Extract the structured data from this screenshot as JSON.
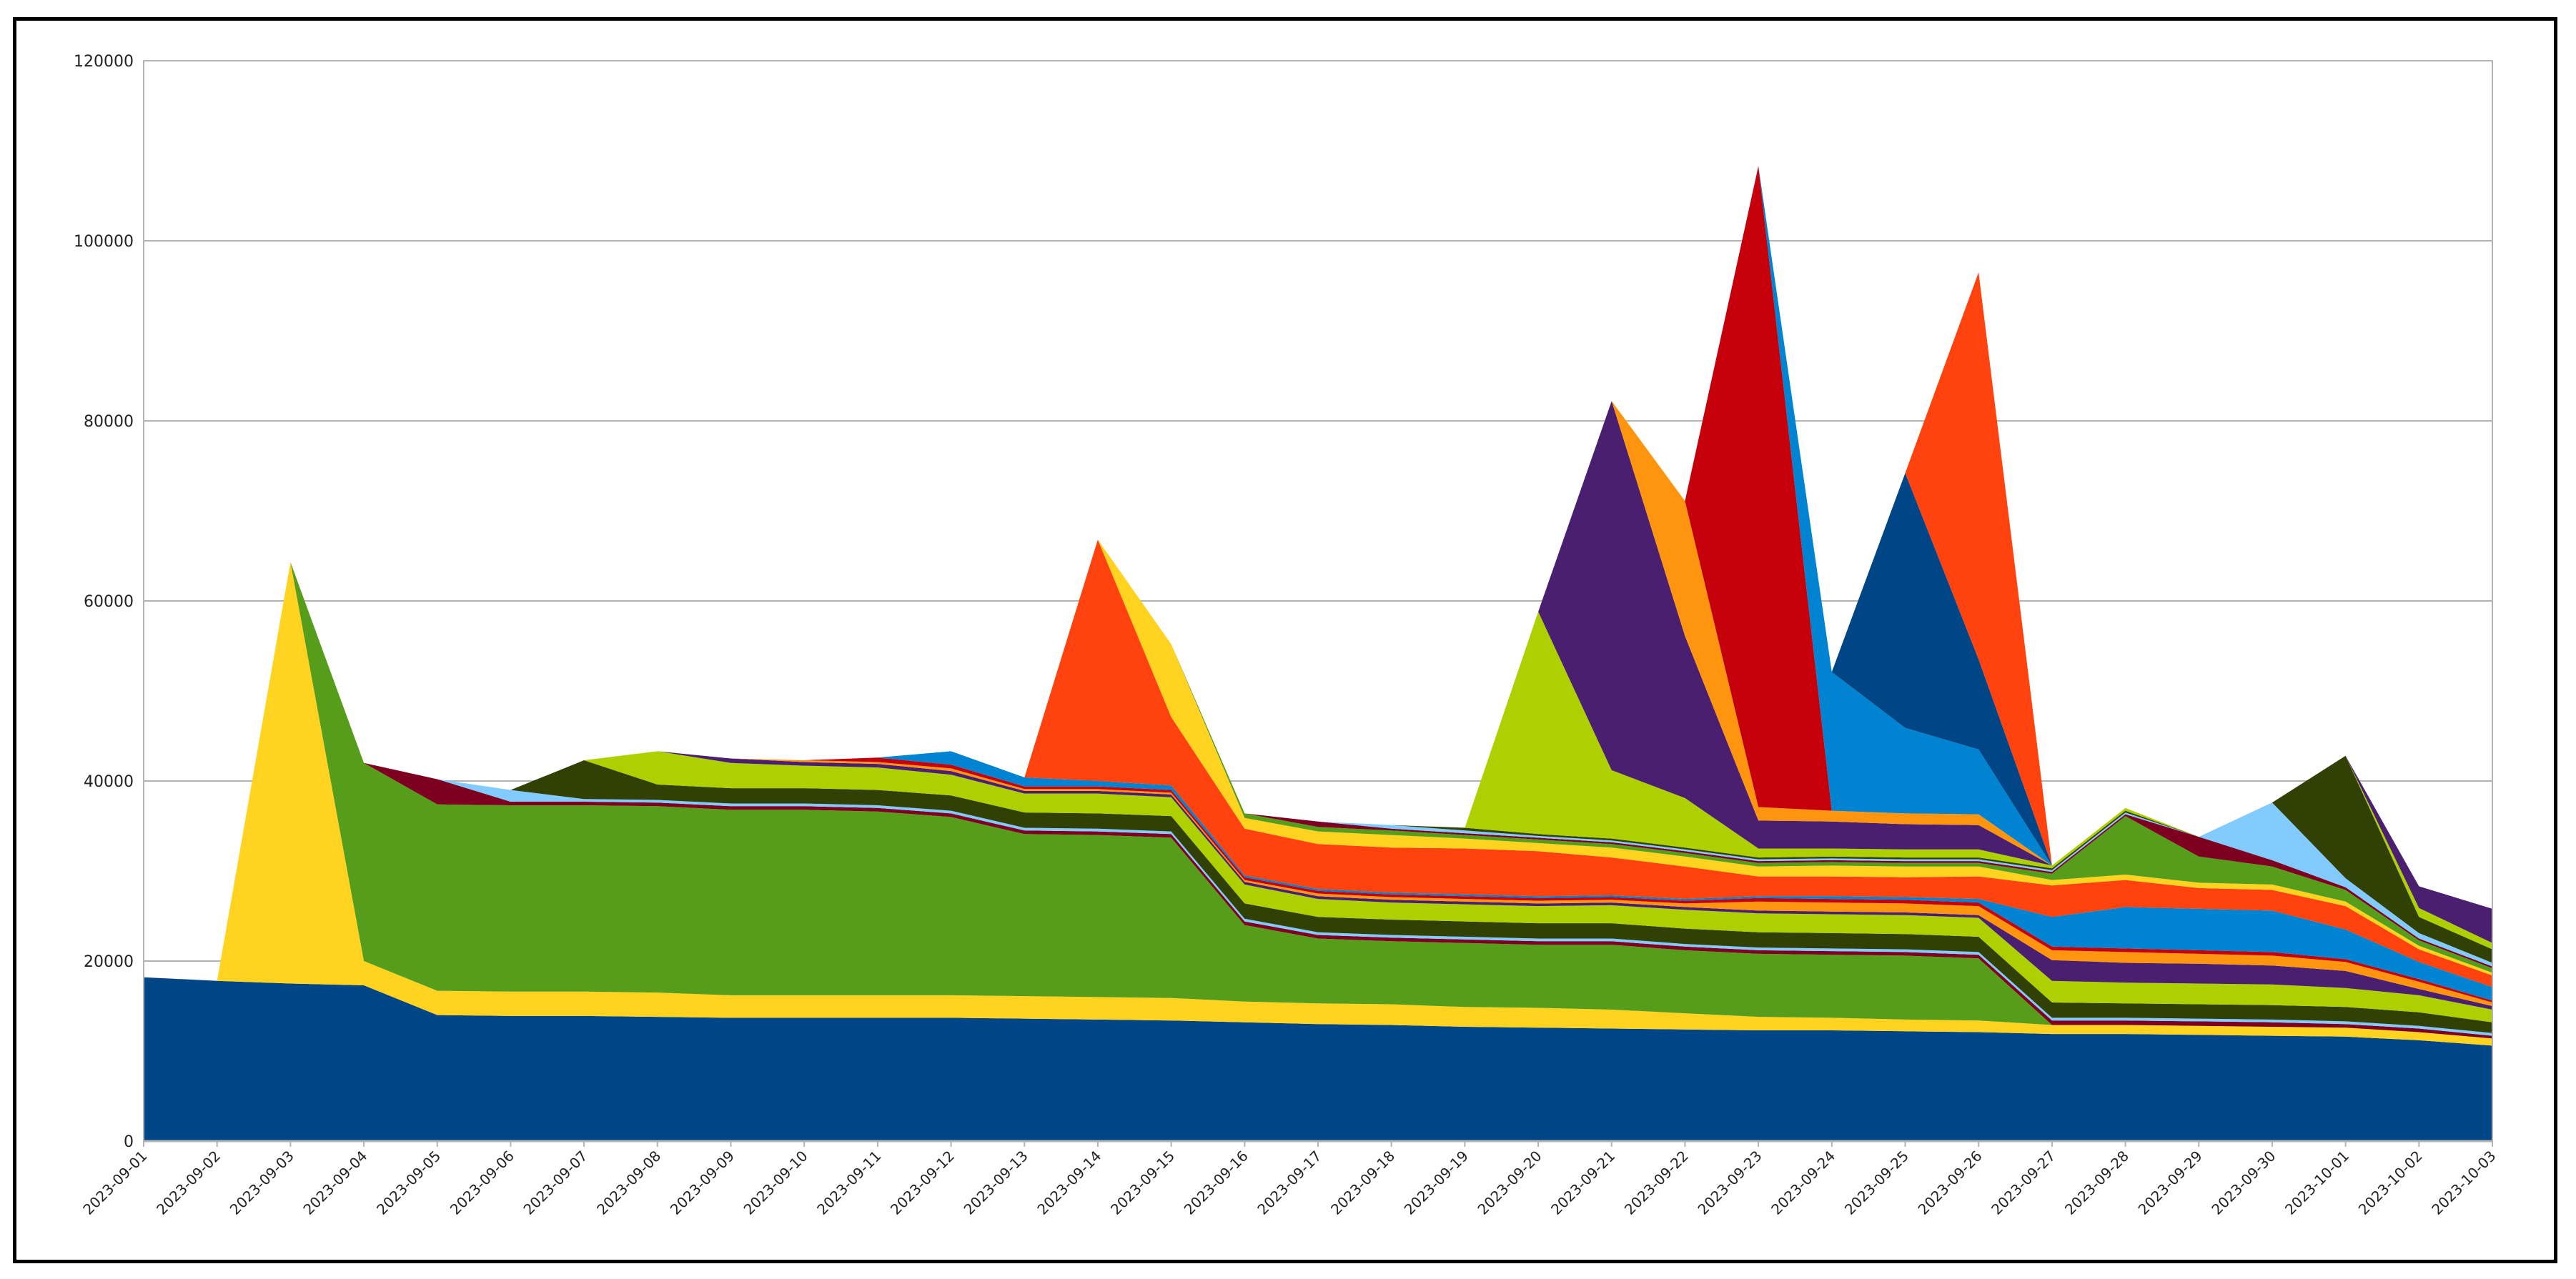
{
  "chart_data": {
    "type": "area",
    "stacked": true,
    "title": "",
    "xlabel": "",
    "ylabel": "",
    "ylim": [
      0,
      120000
    ],
    "yticks": [
      0,
      20000,
      40000,
      60000,
      80000,
      100000,
      120000
    ],
    "grid": "horizontal",
    "legend": "none",
    "x": [
      "2023-09-01",
      "2023-09-02",
      "2023-09-03",
      "2023-09-04",
      "2023-09-05",
      "2023-09-06",
      "2023-09-07",
      "2023-09-08",
      "2023-09-09",
      "2023-09-10",
      "2023-09-11",
      "2023-09-12",
      "2023-09-13",
      "2023-09-14",
      "2023-09-15",
      "2023-09-16",
      "2023-09-17",
      "2023-09-18",
      "2023-09-19",
      "2023-09-20",
      "2023-09-21",
      "2023-09-22",
      "2023-09-23",
      "2023-09-24",
      "2023-09-25",
      "2023-09-26",
      "2023-09-27",
      "2023-09-28",
      "2023-09-29",
      "2023-09-30",
      "2023-10-01",
      "2023-10-02",
      "2023-10-03"
    ],
    "series": [
      {
        "color": "#004586",
        "values": [
          18200,
          17800,
          17500,
          17300,
          14000,
          13900,
          13900,
          13800,
          13700,
          13700,
          13700,
          13700,
          13600,
          13500,
          13400,
          13200,
          13000,
          12900,
          12700,
          12600,
          12500,
          12400,
          12300,
          12300,
          12200,
          12100,
          11900,
          11900,
          11800,
          11700,
          11600,
          11200,
          10600
        ]
      },
      {
        "color": "#ffd320",
        "values": [
          0,
          0,
          46800,
          2700,
          2700,
          2700,
          2700,
          2700,
          2500,
          2500,
          2500,
          2500,
          2500,
          2500,
          2500,
          2300,
          2300,
          2300,
          2200,
          2200,
          2100,
          1800,
          1500,
          1400,
          1300,
          1300,
          1000,
          1000,
          1000,
          1000,
          1000,
          900,
          800
        ]
      },
      {
        "color": "#579d1c",
        "values": [
          0,
          0,
          0,
          22000,
          20700,
          20700,
          20700,
          20700,
          20600,
          20600,
          20400,
          19800,
          18000,
          18000,
          17800,
          8500,
          7200,
          7000,
          7100,
          7000,
          7200,
          7000,
          7000,
          7000,
          7100,
          6900,
          0,
          0,
          0,
          0,
          0,
          0,
          0
        ]
      },
      {
        "color": "#7e0021",
        "values": [
          0,
          0,
          0,
          0,
          2800,
          400,
          400,
          400,
          400,
          400,
          400,
          400,
          400,
          400,
          400,
          400,
          400,
          400,
          400,
          400,
          400,
          400,
          400,
          400,
          400,
          400,
          500,
          500,
          500,
          500,
          400,
          400,
          300
        ]
      },
      {
        "color": "#83caff",
        "values": [
          0,
          0,
          0,
          0,
          0,
          1300,
          300,
          300,
          300,
          300,
          300,
          300,
          300,
          300,
          300,
          300,
          300,
          300,
          300,
          300,
          300,
          300,
          300,
          300,
          300,
          300,
          300,
          300,
          300,
          300,
          300,
          300,
          300
        ]
      },
      {
        "color": "#314004",
        "values": [
          0,
          0,
          0,
          0,
          0,
          0,
          4300,
          1700,
          1700,
          1700,
          1700,
          1700,
          1700,
          1700,
          1700,
          1700,
          1700,
          1700,
          1700,
          1700,
          1700,
          1700,
          1700,
          1700,
          1700,
          1700,
          1700,
          1600,
          1600,
          1600,
          1600,
          1500,
          1200
        ]
      },
      {
        "color": "#aecf00",
        "values": [
          0,
          0,
          0,
          0,
          0,
          0,
          0,
          3700,
          2800,
          2500,
          2500,
          2300,
          2100,
          2200,
          2100,
          2100,
          2000,
          1900,
          1900,
          1900,
          2000,
          2100,
          2100,
          2100,
          2100,
          2100,
          2400,
          2300,
          2300,
          2300,
          2100,
          1900,
          1400
        ]
      },
      {
        "color": "#4b1f6f",
        "values": [
          0,
          0,
          0,
          0,
          0,
          0,
          0,
          0,
          500,
          400,
          400,
          400,
          300,
          300,
          300,
          300,
          300,
          300,
          300,
          300,
          300,
          300,
          300,
          300,
          300,
          300,
          2300,
          2200,
          2200,
          2100,
          1900,
          700,
          400
        ]
      },
      {
        "color": "#ff950e",
        "values": [
          0,
          0,
          0,
          0,
          0,
          0,
          0,
          0,
          0,
          200,
          200,
          300,
          200,
          200,
          200,
          200,
          300,
          300,
          300,
          300,
          300,
          400,
          1000,
          1000,
          1000,
          1000,
          1100,
          1200,
          1100,
          1100,
          1000,
          800,
          400
        ]
      },
      {
        "color": "#c5000b",
        "values": [
          0,
          0,
          0,
          0,
          0,
          0,
          0,
          0,
          0,
          0,
          500,
          400,
          300,
          300,
          300,
          300,
          300,
          300,
          300,
          300,
          300,
          300,
          400,
          400,
          400,
          400,
          400,
          400,
          400,
          400,
          300,
          300,
          200
        ]
      },
      {
        "color": "#0084d1",
        "values": [
          0,
          0,
          0,
          0,
          0,
          0,
          0,
          0,
          0,
          0,
          0,
          1500,
          1000,
          600,
          500,
          200,
          200,
          200,
          200,
          200,
          200,
          200,
          200,
          300,
          300,
          400,
          3300,
          4600,
          4600,
          4600,
          3300,
          1900,
          1500
        ]
      },
      {
        "color": "#ff420e",
        "values": [
          0,
          0,
          0,
          0,
          0,
          0,
          0,
          0,
          0,
          0,
          0,
          0,
          0,
          26800,
          7600,
          5200,
          5000,
          5000,
          5100,
          5000,
          4200,
          3600,
          2200,
          2200,
          2200,
          2500,
          3500,
          3000,
          2300,
          2300,
          2600,
          1400,
          1300
        ]
      },
      {
        "color": "#ffd320",
        "values": [
          0,
          0,
          0,
          0,
          0,
          0,
          0,
          0,
          0,
          0,
          0,
          0,
          0,
          0,
          8100,
          1200,
          1400,
          1400,
          1100,
          900,
          1100,
          1100,
          1100,
          1200,
          1200,
          1100,
          600,
          600,
          600,
          600,
          500,
          400,
          300
        ]
      },
      {
        "color": "#579d1c",
        "values": [
          0,
          0,
          0,
          0,
          0,
          0,
          0,
          0,
          0,
          0,
          0,
          0,
          0,
          0,
          0,
          500,
          500,
          500,
          400,
          400,
          400,
          400,
          400,
          400,
          400,
          400,
          700,
          6500,
          2900,
          2000,
          1300,
          600,
          500
        ]
      },
      {
        "color": "#7e0021",
        "values": [
          0,
          0,
          0,
          0,
          0,
          0,
          0,
          0,
          0,
          0,
          0,
          0,
          0,
          0,
          0,
          0,
          600,
          200,
          200,
          200,
          200,
          200,
          200,
          200,
          200,
          200,
          200,
          200,
          2200,
          700,
          300,
          200,
          200
        ]
      },
      {
        "color": "#83caff",
        "values": [
          0,
          0,
          0,
          0,
          0,
          0,
          0,
          0,
          0,
          0,
          0,
          0,
          0,
          0,
          0,
          0,
          0,
          400,
          300,
          200,
          200,
          200,
          200,
          200,
          200,
          200,
          200,
          200,
          0,
          6400,
          1000,
          600,
          400
        ]
      },
      {
        "color": "#314004",
        "values": [
          0,
          0,
          0,
          0,
          0,
          0,
          0,
          0,
          0,
          0,
          0,
          0,
          0,
          0,
          0,
          0,
          0,
          0,
          300,
          200,
          200,
          200,
          200,
          200,
          200,
          200,
          200,
          200,
          0,
          0,
          13600,
          1800,
          1500
        ]
      },
      {
        "color": "#aecf00",
        "values": [
          0,
          0,
          0,
          0,
          0,
          0,
          0,
          0,
          0,
          0,
          0,
          0,
          0,
          0,
          0,
          0,
          0,
          0,
          0,
          24700,
          7600,
          5500,
          1000,
          900,
          900,
          900,
          300,
          300,
          0,
          0,
          0,
          1000,
          700
        ]
      },
      {
        "color": "#4b1f6f",
        "values": [
          0,
          0,
          0,
          0,
          0,
          0,
          0,
          0,
          0,
          0,
          0,
          0,
          0,
          0,
          0,
          0,
          0,
          0,
          0,
          0,
          41000,
          18000,
          3100,
          3000,
          2800,
          2700,
          0,
          0,
          0,
          0,
          0,
          2400,
          3800
        ]
      },
      {
        "color": "#ff950e",
        "values": [
          0,
          0,
          0,
          0,
          0,
          0,
          0,
          0,
          0,
          0,
          0,
          0,
          0,
          0,
          0,
          0,
          0,
          0,
          0,
          0,
          0,
          15000,
          1500,
          1200,
          1200,
          1200,
          0,
          0,
          0,
          0,
          0,
          0,
          0
        ]
      },
      {
        "color": "#c5000b",
        "values": [
          0,
          0,
          0,
          0,
          0,
          0,
          0,
          0,
          0,
          0,
          0,
          0,
          0,
          0,
          0,
          0,
          0,
          0,
          0,
          0,
          0,
          0,
          71200,
          0,
          0,
          0,
          0,
          0,
          0,
          0,
          0,
          0,
          0
        ]
      },
      {
        "color": "#0084d1",
        "values": [
          0,
          0,
          0,
          0,
          0,
          0,
          0,
          0,
          0,
          0,
          0,
          0,
          0,
          0,
          0,
          0,
          0,
          0,
          0,
          0,
          0,
          0,
          0,
          15400,
          9500,
          7200,
          0,
          0,
          0,
          0,
          0,
          0,
          0
        ]
      },
      {
        "color": "#004586",
        "values": [
          0,
          0,
          0,
          0,
          0,
          0,
          0,
          0,
          0,
          0,
          0,
          0,
          0,
          0,
          0,
          0,
          0,
          0,
          0,
          0,
          0,
          0,
          0,
          0,
          28300,
          10000,
          0,
          0,
          0,
          0,
          0,
          0,
          0
        ]
      },
      {
        "color": "#ff420e",
        "values": [
          0,
          0,
          0,
          0,
          0,
          0,
          0,
          0,
          0,
          0,
          0,
          0,
          0,
          0,
          0,
          0,
          0,
          0,
          0,
          0,
          0,
          0,
          0,
          0,
          0,
          43000,
          0,
          0,
          0,
          0,
          0,
          0,
          0
        ]
      }
    ]
  }
}
